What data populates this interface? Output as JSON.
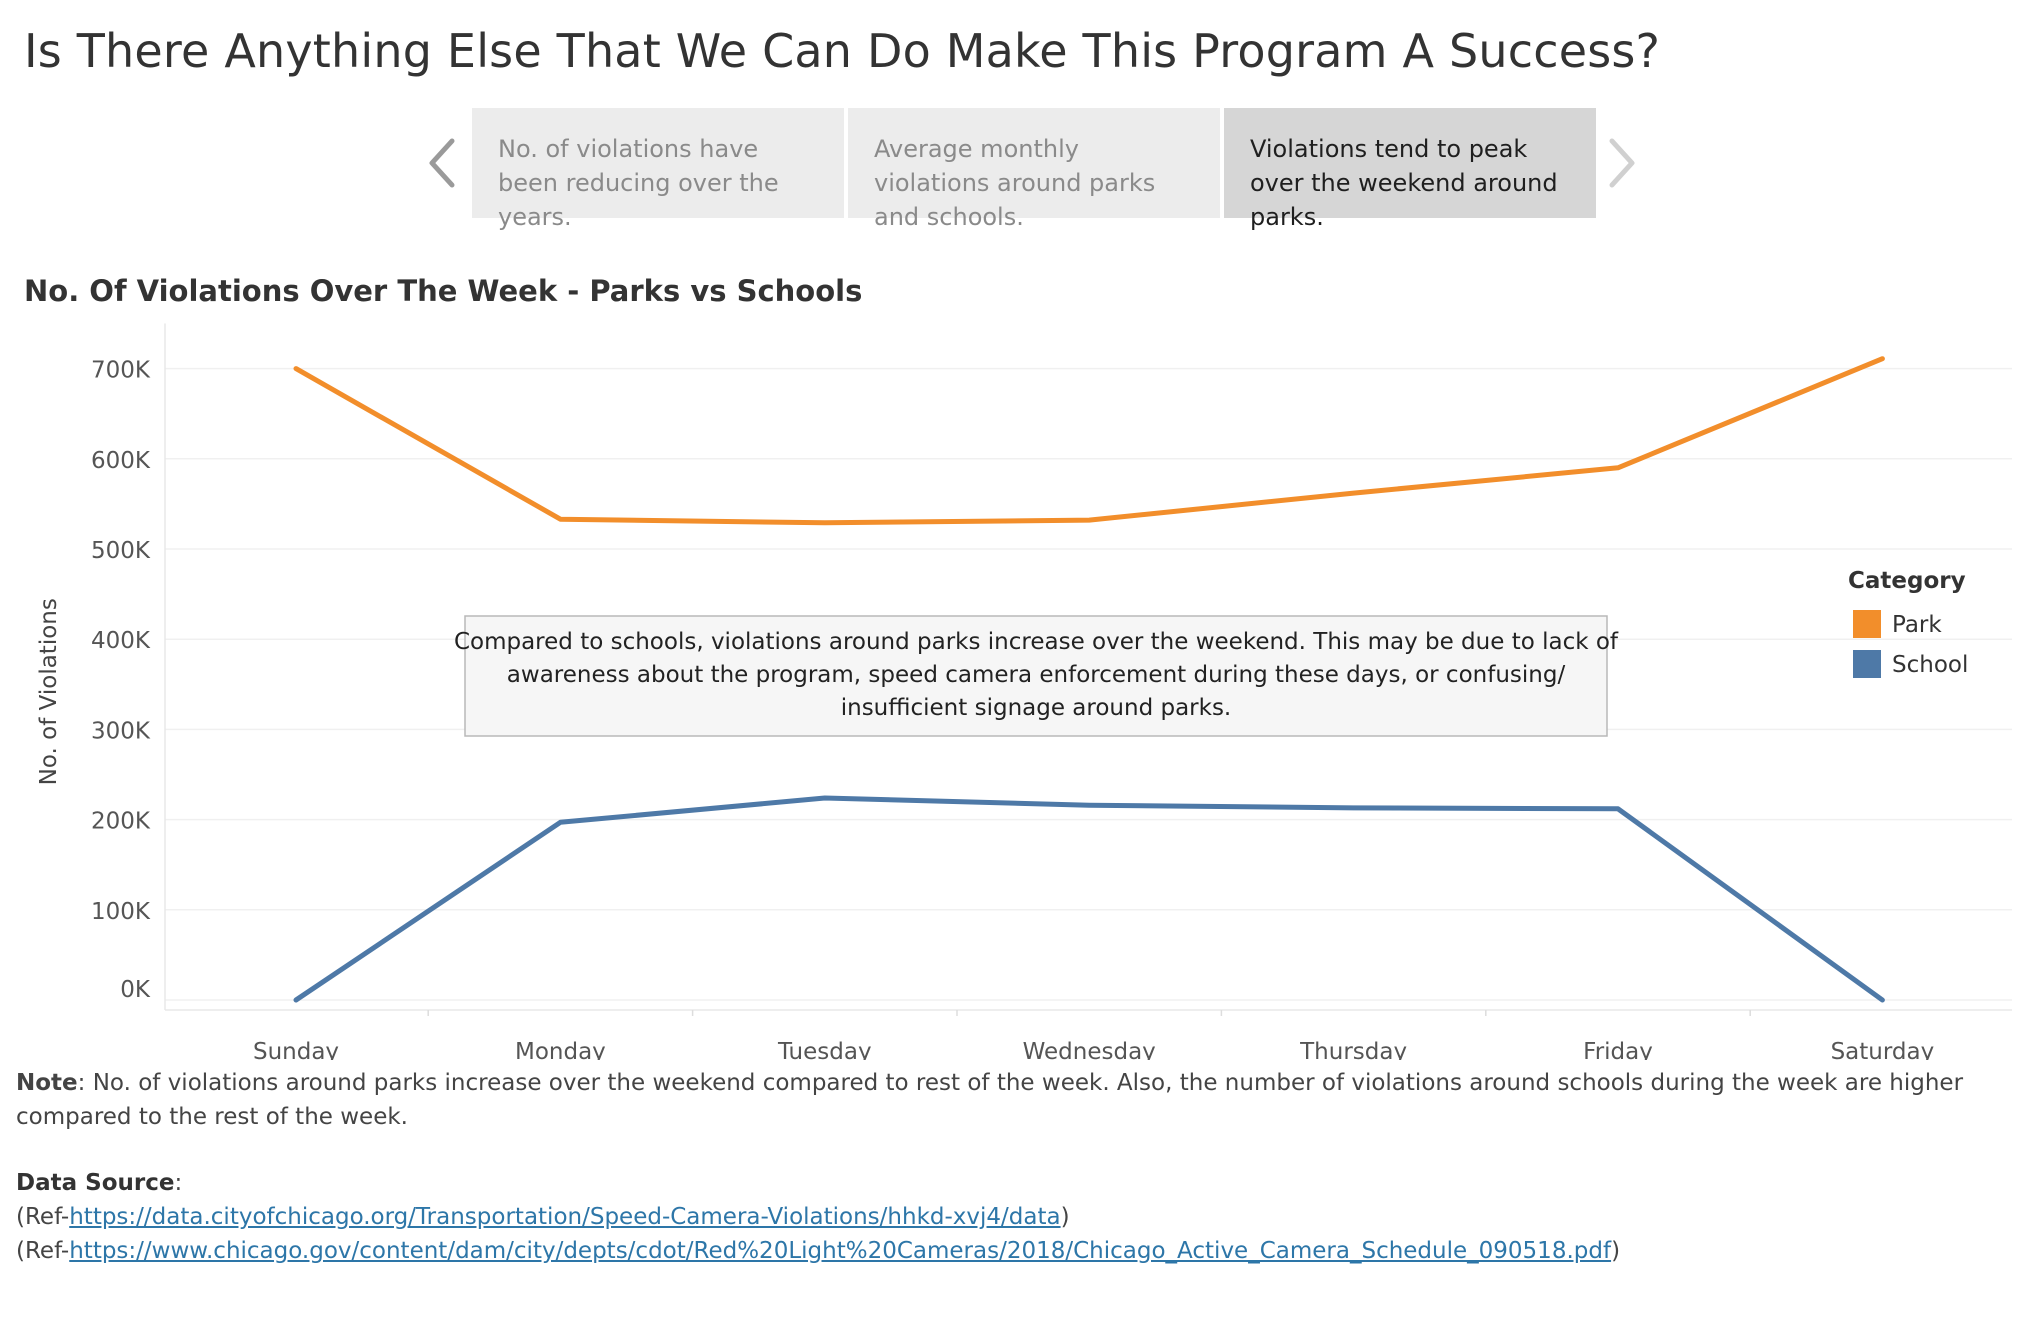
{
  "page": {
    "title": "Is There Anything Else That We Can Do Make This Program A Success?"
  },
  "story_points": [
    {
      "label": "No. of violations have been reducing over the years.",
      "selected": false
    },
    {
      "label": "Average monthly violations around parks and schools.",
      "selected": false
    },
    {
      "label": "Violations tend to peak over the weekend around parks.",
      "selected": true
    }
  ],
  "nav": {
    "prev_icon": "chevron-left-icon",
    "next_icon": "chevron-right-icon"
  },
  "chart_title": "No. Of Violations Over The Week - Parks vs Schools",
  "chart_data": {
    "type": "line",
    "categories": [
      "Sunday",
      "Monday",
      "Tuesday",
      "Wednesday",
      "Thursday",
      "Friday",
      "Saturday"
    ],
    "series": [
      {
        "name": "Park",
        "color": "#f28e2b",
        "values": [
          700000,
          533000,
          529000,
          532000,
          562000,
          590000,
          711000
        ]
      },
      {
        "name": "School",
        "color": "#4e79a7",
        "values": [
          0,
          197000,
          224000,
          216000,
          213000,
          212000,
          0
        ]
      }
    ],
    "ylabel": "No. of Violations",
    "xlabel": "",
    "ylim": [
      0,
      750000
    ],
    "y_ticks": [
      0,
      100000,
      200000,
      300000,
      400000,
      500000,
      600000,
      700000
    ],
    "y_tick_labels": [
      "0K",
      "100K",
      "200K",
      "300K",
      "400K",
      "500K",
      "600K",
      "700K"
    ],
    "grid": true,
    "legend": {
      "title": "Category",
      "placement": "right"
    },
    "annotation": "Compared to schools, violations around parks increase over the weekend. This may be due to lack of awareness about the program, speed camera enforcement during these days, or confusing/ insufficient signage around parks."
  },
  "note": {
    "label": "Note",
    "text": ": No. of violations around parks increase over the weekend compared to rest of the week. Also, the number of violations around schools during the week are higher compared to the rest of the week."
  },
  "data_source": {
    "label": "Data Source",
    "label_suffix": ":",
    "refs": [
      {
        "prefix": "(Ref-",
        "url": "https://data.cityofchicago.org/Transportation/Speed-Camera-Violations/hhkd-xvj4/data",
        "suffix": ")"
      },
      {
        "prefix": "(Ref-",
        "url": "https://www.chicago.gov/content/dam/city/depts/cdot/Red%20Light%20Cameras/2018/Chicago_Active_Camera_Schedule_090518.pdf",
        "suffix": ")"
      }
    ]
  }
}
